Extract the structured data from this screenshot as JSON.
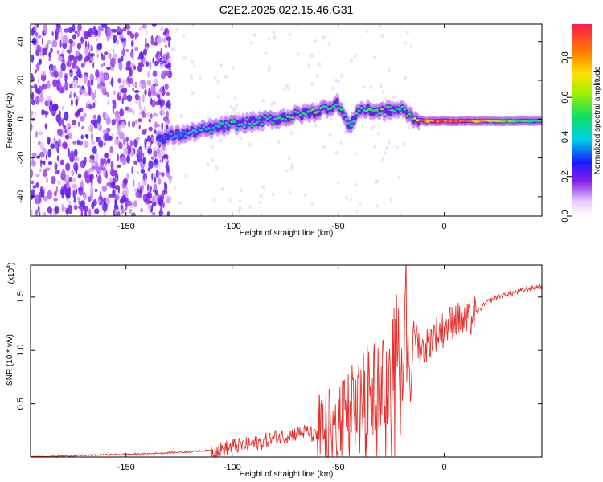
{
  "title": "C2E2.2025.022.15.46.G31",
  "chart_data": [
    {
      "type": "heatmap",
      "xlabel": "Height of straight line (km)",
      "ylabel": "Frequency (Hz)",
      "xlim": [
        -195,
        46
      ],
      "ylim": [
        -50,
        49
      ],
      "x_ticks": [
        -150,
        -100,
        -50,
        0
      ],
      "y_ticks": [
        -40,
        -20,
        0,
        20,
        40
      ],
      "colorbar": {
        "label": "Normalized spectral amplitude",
        "range": [
          0,
          0.97
        ],
        "ticks": [
          "0.0",
          "0.2",
          "0.4",
          "0.6",
          "0.8"
        ],
        "tick_values": [
          0.0,
          0.2,
          0.4,
          0.6,
          0.8
        ]
      },
      "noise_region_x": [
        -195,
        -135
      ],
      "signal_track": {
        "x": [
          -135,
          -120,
          -100,
          -80,
          -60,
          -50,
          -45,
          -40,
          -30,
          -20,
          -15,
          -10,
          0,
          10,
          20,
          30,
          46
        ],
        "frequency": [
          -10,
          -7,
          -3,
          0,
          4,
          8,
          -4,
          5,
          4,
          5,
          1,
          -1,
          -1,
          -1,
          -1,
          -1,
          -1
        ],
        "amplitude": [
          0.35,
          0.4,
          0.45,
          0.5,
          0.55,
          0.5,
          0.45,
          0.5,
          0.55,
          0.5,
          0.6,
          0.85,
          0.95,
          0.9,
          0.7,
          0.55,
          0.5
        ]
      }
    },
    {
      "type": "line",
      "xlabel": "Height of straight line (km)",
      "ylabel": "SNR (10 * v/v)",
      "y_multiplier_label": "(x10",
      "y_multiplier_exp": "4",
      "xlim": [
        -195,
        46
      ],
      "ylim": [
        0,
        1.8
      ],
      "x_ticks": [
        -150,
        -100,
        -50,
        0
      ],
      "y_ticks": [
        "0.5",
        "1.0",
        "1.5"
      ],
      "y_tick_values": [
        0.5,
        1.0,
        1.5
      ],
      "series": [
        {
          "color": "#e8312d",
          "x": [
            -195,
            -180,
            -160,
            -140,
            -120,
            -105,
            -100,
            -90,
            -80,
            -75,
            -70,
            -65,
            -60,
            -55,
            -50,
            -45,
            -40,
            -35,
            -30,
            -25,
            -22,
            -20,
            -18,
            -16,
            -14,
            -12,
            -10,
            -5,
            0,
            5,
            10,
            15,
            20,
            25,
            30,
            35,
            40,
            46
          ],
          "values": [
            0.0,
            0.01,
            0.02,
            0.03,
            0.05,
            0.07,
            0.1,
            0.12,
            0.18,
            0.2,
            0.22,
            0.24,
            0.18,
            0.2,
            0.28,
            0.38,
            0.55,
            0.65,
            0.72,
            0.78,
            1.3,
            0.9,
            1.5,
            0.8,
            1.2,
            1.05,
            1.0,
            1.15,
            1.2,
            1.3,
            1.25,
            1.35,
            1.45,
            1.5,
            1.53,
            1.55,
            1.58,
            1.6
          ]
        }
      ]
    }
  ]
}
